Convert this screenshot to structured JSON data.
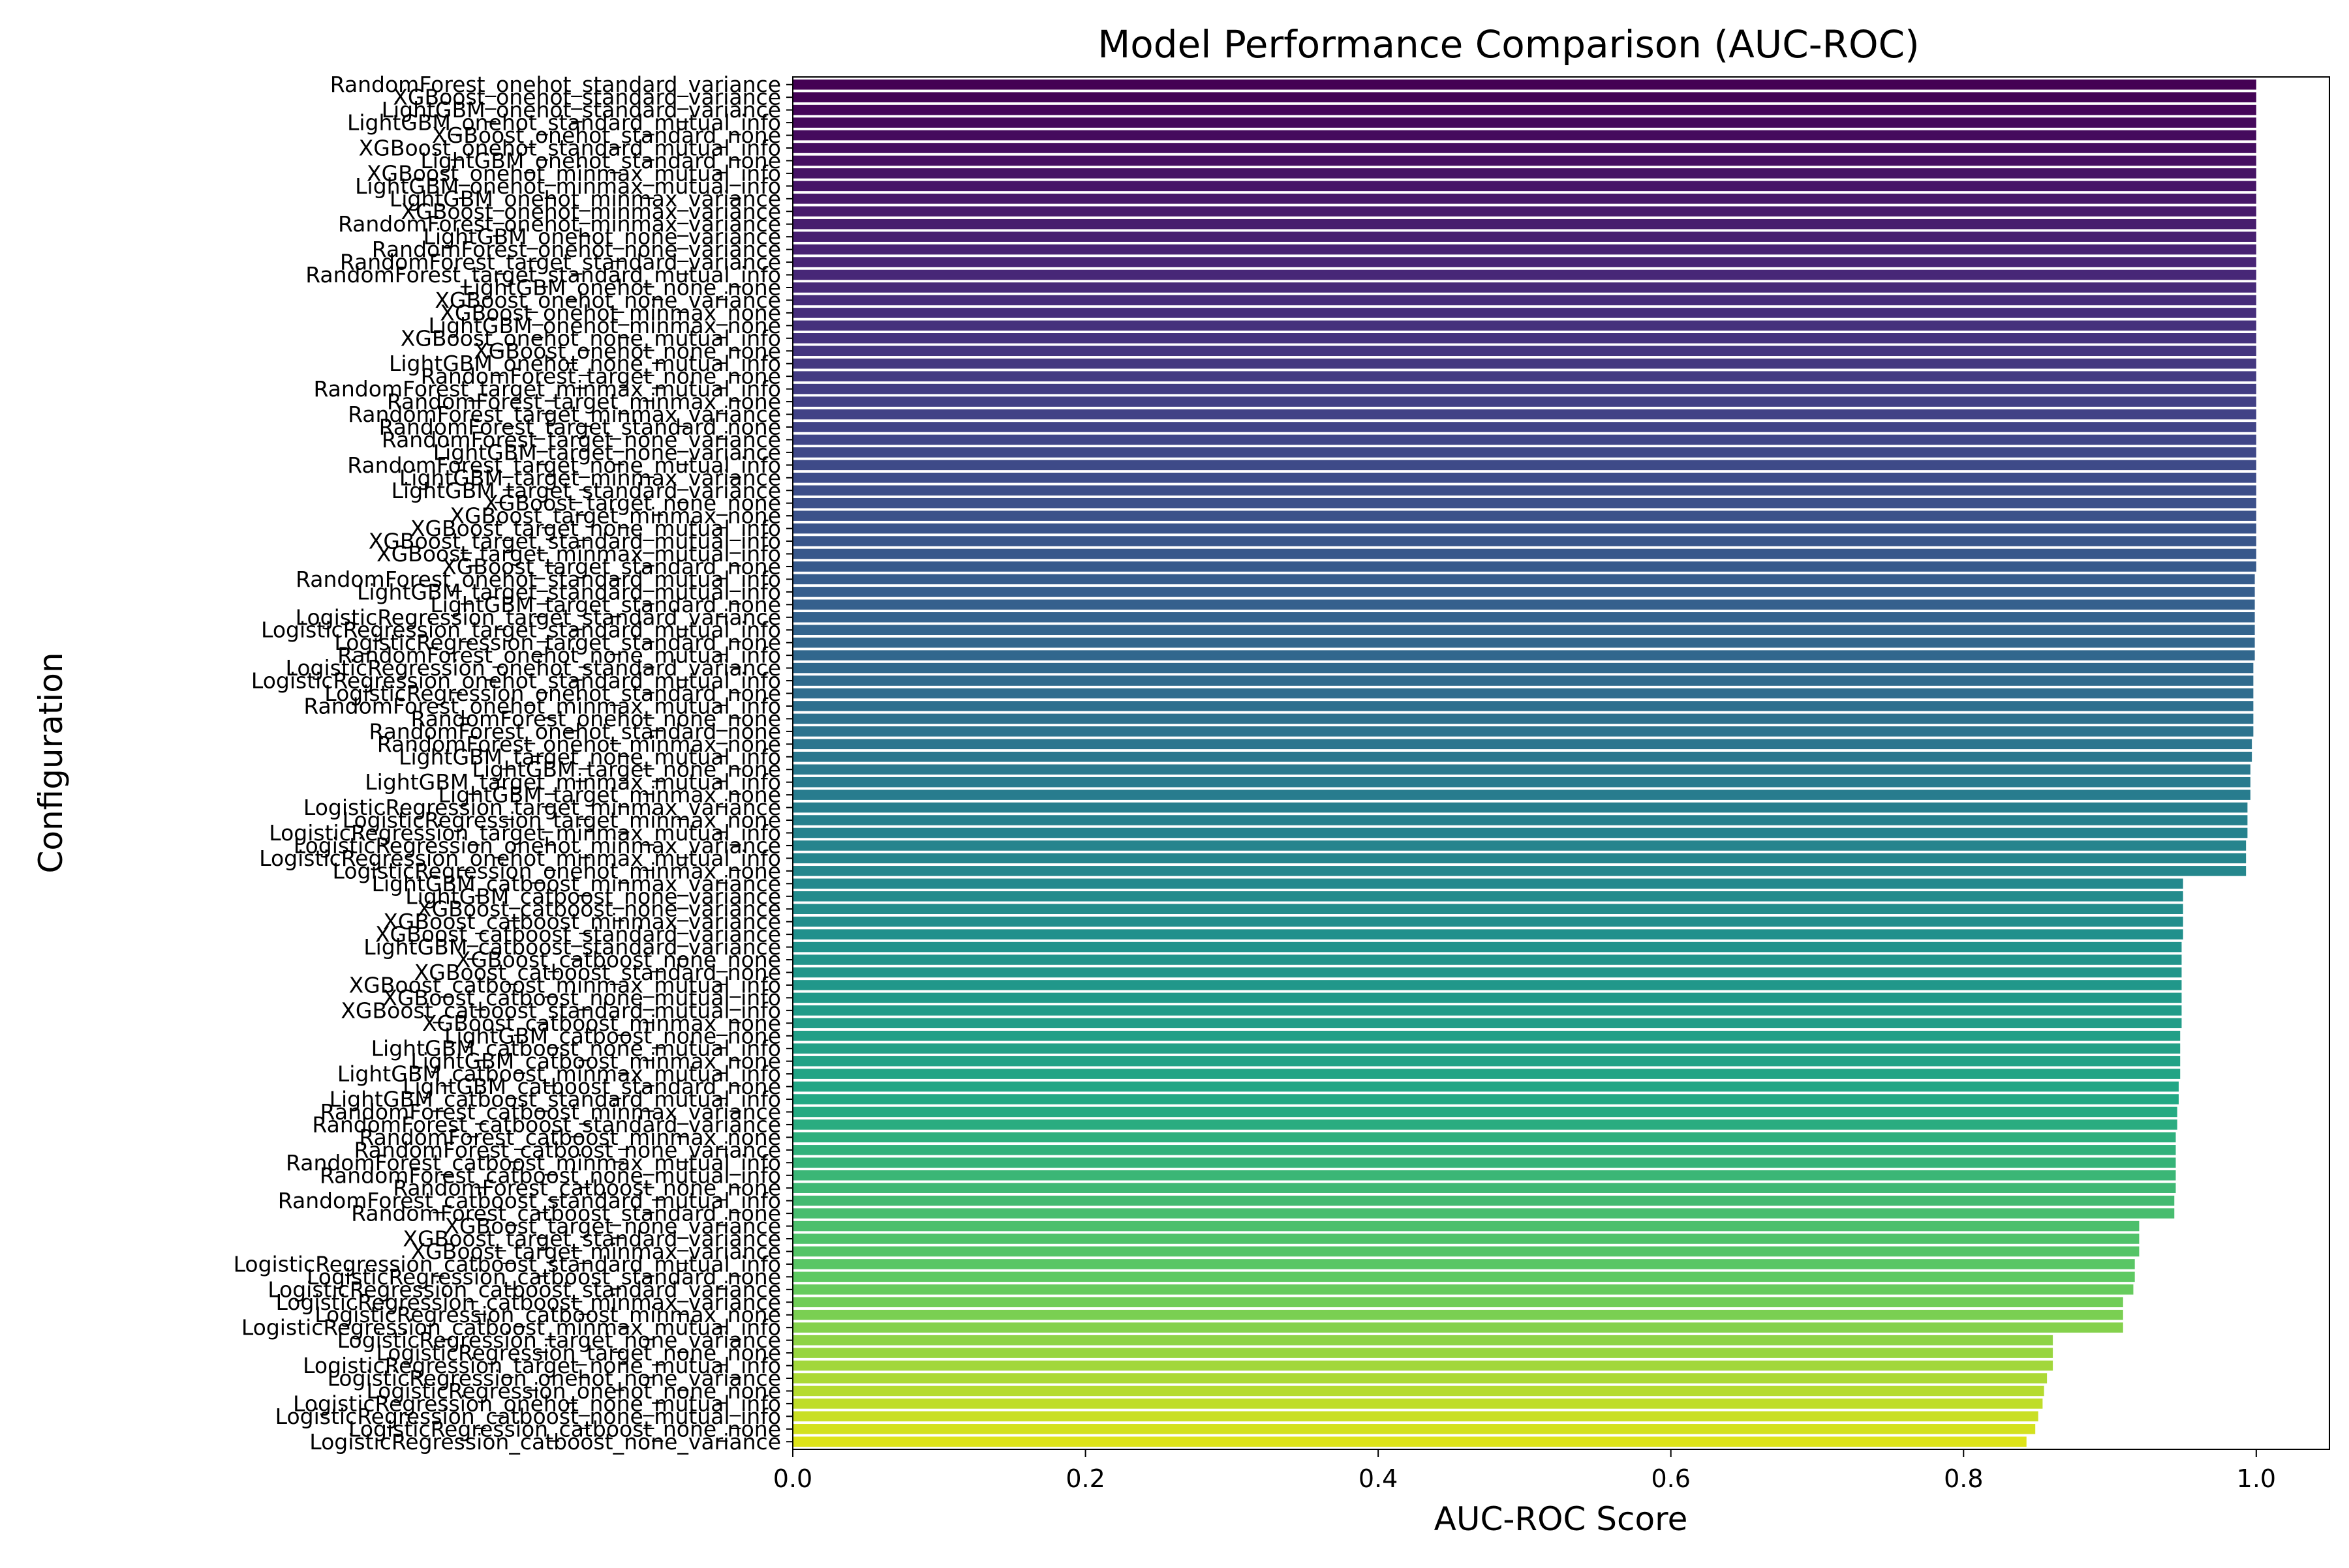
{
  "chart_data": {
    "type": "bar",
    "orientation": "horizontal",
    "title": "Model Performance Comparison (AUC-ROC)",
    "xlabel": "AUC-ROC Score",
    "ylabel": "Configuration",
    "xlim": [
      0,
      1.05
    ],
    "xticks": [
      "0.0",
      "0.2",
      "0.4",
      "0.6",
      "0.8",
      "1.0"
    ],
    "xtick_values": [
      0,
      0.2,
      0.4,
      0.6,
      0.8,
      1.0
    ],
    "grid": false,
    "colormap": "viridis",
    "colors": {
      "start": "#440154",
      "end": "#dde318"
    },
    "categories": [
      "RandomForest_onehot_standard_variance",
      "XGBoost_onehot_standard_variance",
      "LightGBM_onehot_standard_variance",
      "LightGBM_onehot_standard_mutual_info",
      "XGBoost_onehot_standard_none",
      "XGBoost_onehot_standard_mutual_info",
      "LightGBM_onehot_standard_none",
      "XGBoost_onehot_minmax_mutual_info",
      "LightGBM_onehot_minmax_mutual_info",
      "LightGBM_onehot_minmax_variance",
      "XGBoost_onehot_minmax_variance",
      "RandomForest_onehot_minmax_variance",
      "LightGBM_onehot_none_variance",
      "RandomForest_onehot_none_variance",
      "RandomForest_target_standard_variance",
      "RandomForest_target_standard_mutual_info",
      "LightGBM_onehot_none_none",
      "XGBoost_onehot_none_variance",
      "XGBoost_onehot_minmax_none",
      "LightGBM_onehot_minmax_none",
      "XGBoost_onehot_none_mutual_info",
      "XGBoost_onehot_none_none",
      "LightGBM_onehot_none_mutual_info",
      "RandomForest_target_none_none",
      "RandomForest_target_minmax_mutual_info",
      "RandomForest_target_minmax_none",
      "RandomForest_target_minmax_variance",
      "RandomForest_target_standard_none",
      "RandomForest_target_none_variance",
      "LightGBM_target_none_variance",
      "RandomForest_target_none_mutual_info",
      "LightGBM_target_minmax_variance",
      "LightGBM_target_standard_variance",
      "XGBoost_target_none_none",
      "XGBoost_target_minmax_none",
      "XGBoost_target_none_mutual_info",
      "XGBoost_target_standard_mutual_info",
      "XGBoost_target_minmax_mutual_info",
      "XGBoost_target_standard_none",
      "RandomForest_onehot_standard_mutual_info",
      "LightGBM_target_standard_mutual_info",
      "LightGBM_target_standard_none",
      "LogisticRegression_target_standard_variance",
      "LogisticRegression_target_standard_mutual_info",
      "LogisticRegression_target_standard_none",
      "RandomForest_onehot_none_mutual_info",
      "LogisticRegression_onehot_standard_variance",
      "LogisticRegression_onehot_standard_mutual_info",
      "LogisticRegression_onehot_standard_none",
      "RandomForest_onehot_minmax_mutual_info",
      "RandomForest_onehot_none_none",
      "RandomForest_onehot_standard_none",
      "RandomForest_onehot_minmax_none",
      "LightGBM_target_none_mutual_info",
      "LightGBM_target_none_none",
      "LightGBM_target_minmax_mutual_info",
      "LightGBM_target_minmax_none",
      "LogisticRegression_target_minmax_variance",
      "LogisticRegression_target_minmax_none",
      "LogisticRegression_target_minmax_mutual_info",
      "LogisticRegression_onehot_minmax_variance",
      "LogisticRegression_onehot_minmax_mutual_info",
      "LogisticRegression_onehot_minmax_none",
      "LightGBM_catboost_minmax_variance",
      "LightGBM_catboost_none_variance",
      "XGBoost_catboost_none_variance",
      "XGBoost_catboost_minmax_variance",
      "XGBoost_catboost_standard_variance",
      "LightGBM_catboost_standard_variance",
      "XGBoost_catboost_none_none",
      "XGBoost_catboost_standard_none",
      "XGBoost_catboost_minmax_mutual_info",
      "XGBoost_catboost_none_mutual_info",
      "XGBoost_catboost_standard_mutual_info",
      "XGBoost_catboost_minmax_none",
      "LightGBM_catboost_none_none",
      "LightGBM_catboost_none_mutual_info",
      "LightGBM_catboost_minmax_none",
      "LightGBM_catboost_minmax_mutual_info",
      "LightGBM_catboost_standard_none",
      "LightGBM_catboost_standard_mutual_info",
      "RandomForest_catboost_minmax_variance",
      "RandomForest_catboost_standard_variance",
      "RandomForest_catboost_minmax_none",
      "RandomForest_catboost_none_variance",
      "RandomForest_catboost_minmax_mutual_info",
      "RandomForest_catboost_none_mutual_info",
      "RandomForest_catboost_none_none",
      "RandomForest_catboost_standard_mutual_info",
      "RandomForest_catboost_standard_none",
      "XGBoost_target_none_variance",
      "XGBoost_target_standard_variance",
      "XGBoost_target_minmax_variance",
      "LogisticRegression_catboost_standard_mutual_info",
      "LogisticRegression_catboost_standard_none",
      "LogisticRegression_catboost_standard_variance",
      "LogisticRegression_catboost_minmax_variance",
      "LogisticRegression_catboost_minmax_none",
      "LogisticRegression_catboost_minmax_mutual_info",
      "LogisticRegression_target_none_variance",
      "LogisticRegression_target_none_none",
      "LogisticRegression_target_none_mutual_info",
      "LogisticRegression_onehot_none_variance",
      "LogisticRegression_onehot_none_none",
      "LogisticRegression_onehot_none_mutual_info",
      "LogisticRegression_catboost_none_mutual_info",
      "LogisticRegression_catboost_none_none",
      "LogisticRegression_catboost_none_variance"
    ],
    "values": [
      1.0,
      1.0,
      1.0,
      1.0,
      1.0,
      1.0,
      1.0,
      1.0,
      1.0,
      1.0,
      1.0,
      1.0,
      1.0,
      1.0,
      1.0,
      1.0,
      1.0,
      1.0,
      1.0,
      1.0,
      1.0,
      1.0,
      1.0,
      1.0,
      1.0,
      1.0,
      1.0,
      1.0,
      1.0,
      1.0,
      1.0,
      1.0,
      1.0,
      1.0,
      1.0,
      1.0,
      1.0,
      1.0,
      1.0,
      0.999,
      0.999,
      0.999,
      0.999,
      0.999,
      0.999,
      0.999,
      0.998,
      0.998,
      0.998,
      0.998,
      0.998,
      0.998,
      0.997,
      0.997,
      0.996,
      0.996,
      0.996,
      0.994,
      0.994,
      0.994,
      0.993,
      0.993,
      0.993,
      0.95,
      0.95,
      0.95,
      0.95,
      0.95,
      0.949,
      0.949,
      0.949,
      0.949,
      0.949,
      0.949,
      0.949,
      0.948,
      0.948,
      0.948,
      0.948,
      0.947,
      0.947,
      0.946,
      0.946,
      0.945,
      0.945,
      0.945,
      0.945,
      0.945,
      0.944,
      0.944,
      0.92,
      0.92,
      0.92,
      0.917,
      0.917,
      0.916,
      0.909,
      0.909,
      0.909,
      0.861,
      0.861,
      0.861,
      0.857,
      0.855,
      0.854,
      0.851,
      0.849,
      0.843
    ]
  }
}
